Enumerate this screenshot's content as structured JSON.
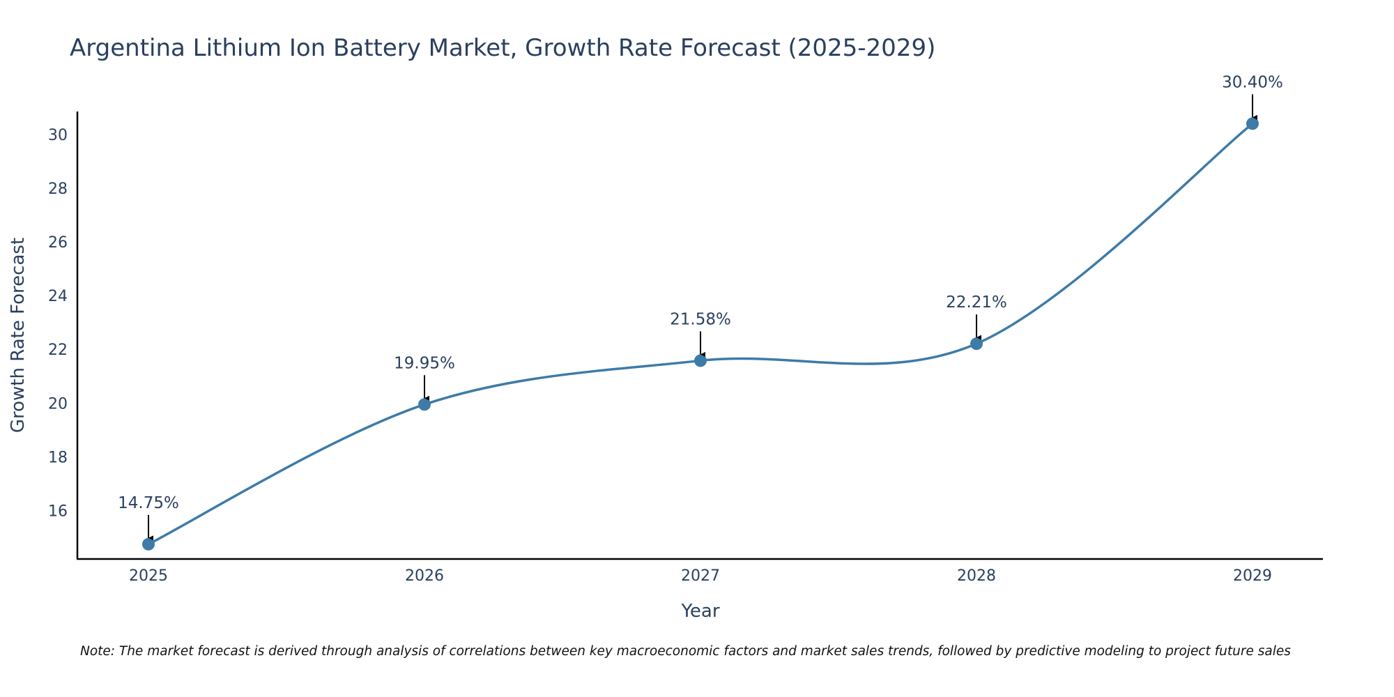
{
  "chart_data": {
    "type": "line",
    "title": "Argentina Lithium Ion Battery Market, Growth Rate Forecast (2025-2029)",
    "xlabel": "Year",
    "ylabel": "Growth Rate Forecast",
    "categories": [
      "2025",
      "2026",
      "2027",
      "2028",
      "2029"
    ],
    "series": [
      {
        "name": "Growth Rate Forecast",
        "values": [
          14.75,
          19.95,
          21.58,
          22.21,
          30.4
        ],
        "labels": [
          "14.75%",
          "19.95%",
          "21.58%",
          "22.21%",
          "30.40%"
        ],
        "color": "#3d7ba8"
      }
    ],
    "ylim": [
      14.2,
      30.85
    ],
    "yticks": [
      16,
      18,
      20,
      22,
      24,
      26,
      28,
      30
    ],
    "grid": false,
    "legend": "none",
    "note": "Note: The market forecast is derived through analysis of correlations between key macroeconomic factors and market sales trends, followed by predictive modeling to project future sales"
  }
}
